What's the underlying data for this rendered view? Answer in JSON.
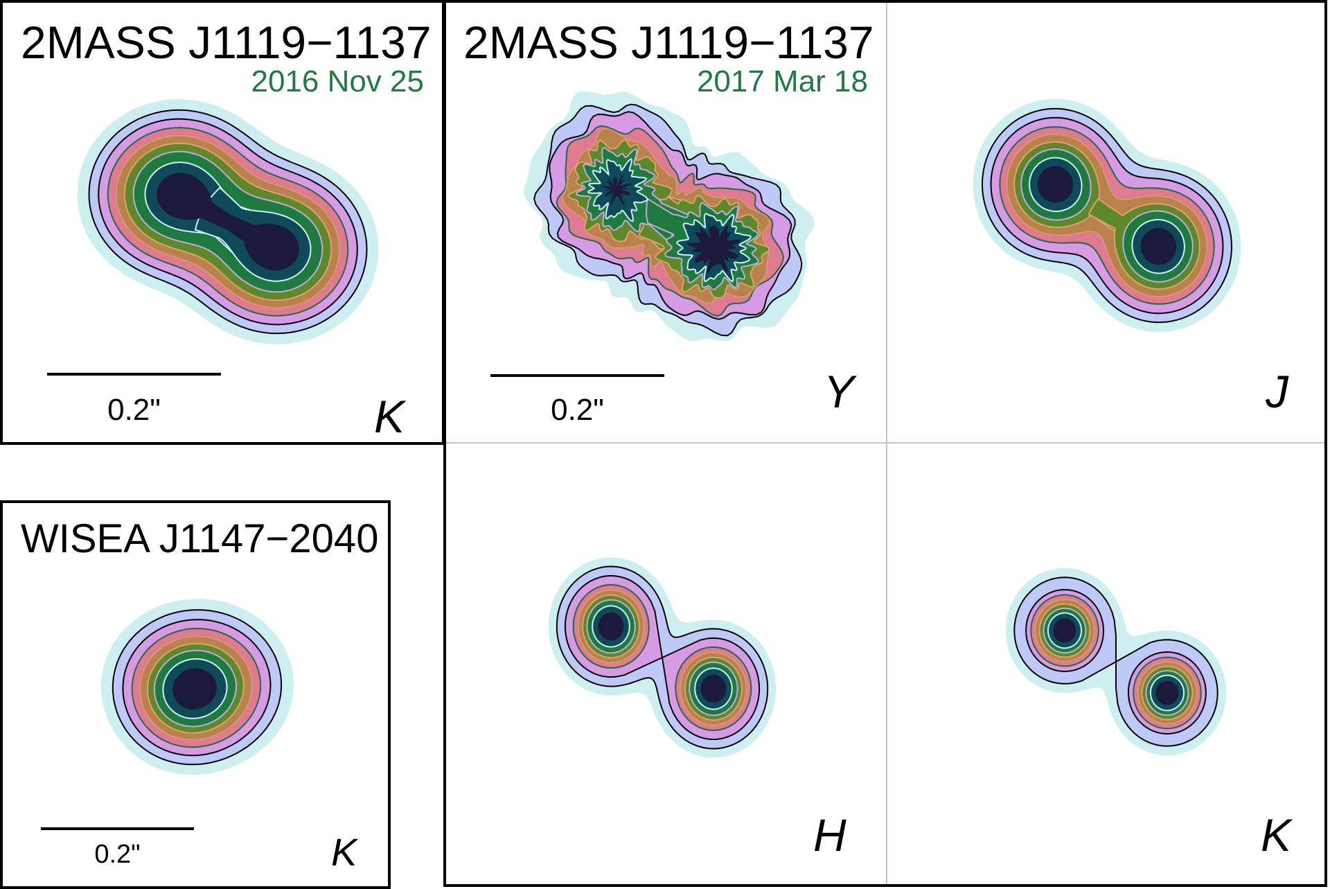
{
  "figure": {
    "panels": [
      {
        "id": "j1119-2016-k",
        "object": "2MASS J1119−1137",
        "date": "2016 Nov 25",
        "band": "K",
        "scale_label": "0.2\"",
        "components": 2
      },
      {
        "id": "j1119-2017-y",
        "object": "2MASS J1119−1137",
        "date": "2017 Mar 18",
        "band": "Y",
        "scale_label": "0.2\"",
        "components": 2
      },
      {
        "id": "j1119-2017-j",
        "band": "J",
        "components": 2
      },
      {
        "id": "j1119-2017-h",
        "band": "H",
        "components": 2
      },
      {
        "id": "j1119-2017-k",
        "band": "K",
        "components": 2
      },
      {
        "id": "j1147-k",
        "object": "WISEA J1147−2040",
        "band": "K",
        "scale_label": "0.2\"",
        "components": 1
      }
    ],
    "contour_levels": [
      {
        "name": "outer-cyan",
        "fill": "#cdeff0"
      },
      {
        "name": "lavender",
        "fill": "#bfc9f7"
      },
      {
        "name": "lilac",
        "fill": "#d79be3"
      },
      {
        "name": "pink",
        "fill": "#e07a90"
      },
      {
        "name": "brown",
        "fill": "#b9814c"
      },
      {
        "name": "olive",
        "fill": "#5d892b"
      },
      {
        "name": "green",
        "fill": "#1f7a40"
      },
      {
        "name": "teal",
        "fill": "#0f4a58"
      },
      {
        "name": "core",
        "fill": "#1b1a3d"
      }
    ],
    "contour_line_colors": [
      "#000000",
      "#000000",
      "#1f6a48",
      "#d49a6a",
      "#e0a070",
      "#c4a8e0",
      "#cdf0f5"
    ],
    "date_color": "#1f7a44"
  }
}
